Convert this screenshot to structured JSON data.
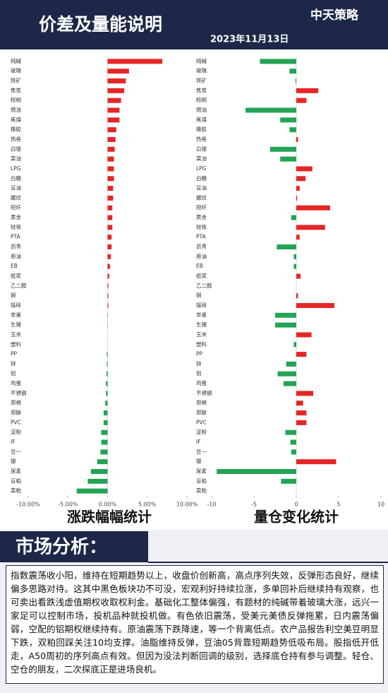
{
  "header": {
    "title": "价差及量能说明",
    "date": "2023年11月13日",
    "logo": "中天策略"
  },
  "chart_data": [
    {
      "type": "hbar",
      "title": "涨跌幅幅统计",
      "categories": [
        "纯碱",
        "玻璃",
        "铁矿",
        "焦炭",
        "棕榈",
        "燃油",
        "焦煤",
        "橡胶",
        "热卷",
        "白银",
        "菜油",
        "LPG",
        "白糖",
        "豆油",
        "螺纹",
        "短纤",
        "黄金",
        "硅铁",
        "PTA",
        "沥青",
        "原油",
        "EB",
        "纸浆",
        "乙二醇",
        "铜",
        "锰硅",
        "苹果",
        "生猪",
        "玉米",
        "塑料",
        "PP",
        "锌",
        "铝",
        "鸡蛋",
        "不锈钢",
        "郑棉",
        "郑醇",
        "PVC",
        "淀粉",
        "IF",
        "豆一",
        "镍",
        "尿素",
        "豆粕",
        "菜粕"
      ],
      "values": [
        6.9,
        2.7,
        2.3,
        2.1,
        1.7,
        1.5,
        1.5,
        1.1,
        1.0,
        0.9,
        0.8,
        0.8,
        0.8,
        0.7,
        0.7,
        0.6,
        0.6,
        0.6,
        0.5,
        0.5,
        0.4,
        0.3,
        0.2,
        0.1,
        0.1,
        0.1,
        0.05,
        0.03,
        0,
        0,
        -0.1,
        -0.1,
        -0.15,
        -0.2,
        -0.2,
        -0.3,
        -0.5,
        -0.5,
        -0.8,
        -0.8,
        -0.9,
        -1.3,
        -2.1,
        -2.5,
        -3.9
      ],
      "positive_color": "#e52626",
      "negative_color": "#23a455",
      "xlim": [
        -10,
        10
      ],
      "xticks": [
        {
          "value": -10,
          "label": "-10.00%"
        },
        {
          "value": -5,
          "label": "-5.00%"
        },
        {
          "value": 0,
          "label": "0.00%"
        },
        {
          "value": 5,
          "label": "5.00%"
        },
        {
          "value": 10,
          "label": "10.00%"
        }
      ]
    },
    {
      "type": "hbar",
      "title": "量仓变化统计",
      "categories": [
        "纯碱",
        "玻璃",
        "铁矿",
        "焦炭",
        "棕榈",
        "燃油",
        "焦煤",
        "橡胶",
        "热卷",
        "白银",
        "菜油",
        "LPG",
        "白糖",
        "豆油",
        "螺纹",
        "短纤",
        "黄金",
        "硅铁",
        "PTA",
        "沥青",
        "原油",
        "EB",
        "纸浆",
        "乙二醇",
        "铜",
        "锰硅",
        "苹果",
        "生猪",
        "玉米",
        "塑料",
        "PP",
        "锌",
        "铝",
        "鸡蛋",
        "不锈钢",
        "郑棉",
        "郑醇",
        "PVC",
        "淀粉",
        "IF",
        "豆一",
        "镍",
        "尿素",
        "豆粕",
        "菜粕"
      ],
      "values": [
        -4.3,
        -0.8,
        -0.1,
        2.6,
        1.2,
        -6.0,
        -1.9,
        -0.8,
        0.2,
        -3.1,
        -1.9,
        1.9,
        1.1,
        0.4,
        0.1,
        4.0,
        -0.6,
        3.4,
        0.4,
        -2.3,
        -0.3,
        -0.3,
        0.5,
        0,
        0.2,
        4.5,
        -2.5,
        -2.5,
        1.8,
        -0.3,
        1.2,
        -1.2,
        -2.2,
        -1.5,
        2.0,
        0.8,
        1.2,
        1.2,
        -1.3,
        -0.7,
        -0.6,
        4.7,
        -9.4,
        -1.8,
        0
      ],
      "positive_color": "#e52626",
      "negative_color": "#23a455",
      "xlim": [
        -10,
        10
      ],
      "xticks": [
        -10,
        -5,
        0,
        5,
        10
      ]
    }
  ],
  "analysis": {
    "title": "市场分析：",
    "text": "指数震荡收小阳，维持在短期趋势以上，收盘价创新高，高点序列失效，反弹形态良好，继续偏多思路对待。这其中黑色板块功不可没，宏观利好持续拉涨，多单回补后继续持有观察，也可卖出看跌浅虚值期权收取权利金。基础化工整体偏强，有题材的纯碱带着玻璃大涨，远兴一家足可以控制市场，投机品种就投机做。有色依旧震荡，受美元美债反弹拖累，日内震荡偏弱，空配的铝期权继续持有。原油震荡下跌降速，等一个背离低点。农产品报告利空美豆明显下跌，双粕回踩关注10均支撑。油脂维持反弹，豆油05背靠短期趋势低吸布局。股指低开低走，A50周初的序列高点有效。但因为没法判断回调的级别，选择底仓持有参与调整。轻仓、空仓的朋友，二次探底正是进场良机。"
  }
}
